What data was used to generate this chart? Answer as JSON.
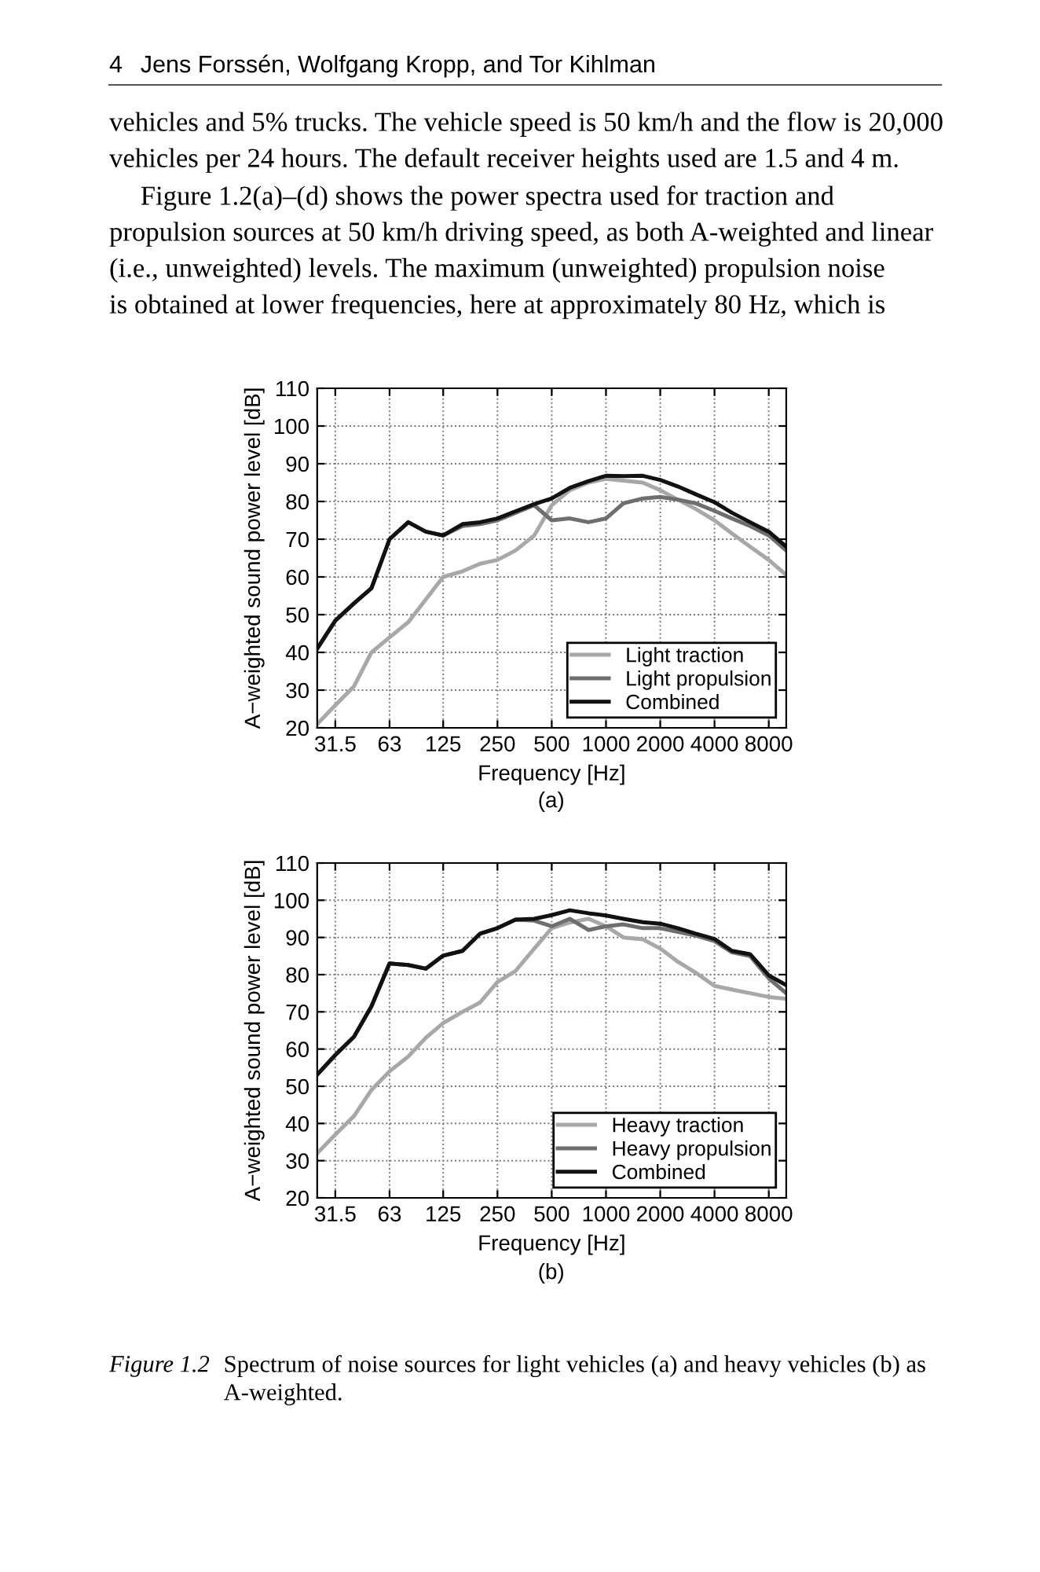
{
  "chart_data": [
    {
      "type": "line",
      "xlabel": "Frequency [Hz]",
      "ylabel": "A−weighted sound power level [dB]",
      "log": "x",
      "annotations": [
        "4",
        "Jens Forssén, Wolfgang Kropp, and Tor Kihlman",
        "vehicles and 5% trucks. The vehicle speed is 50 km/h and the flow is 20,000",
        "vehicles per 24 hours. The default receiver heights used are 1.5 and 4 m.",
        "Figure 1.2(a)–(d) shows the power spectra used for traction and",
        "propulsion sources at 50 km/h driving speed, as both A-weighted and linear",
        "(i.e., unweighted) levels. The maximum (unweighted) propulsion noise",
        "is obtained at lower frequencies, here at approximately 80 Hz, which is",
        "(a)"
      ],
      "x": [
        25,
        31.5,
        40,
        50,
        63,
        80,
        100,
        125,
        160,
        200,
        250,
        315,
        400,
        500,
        630,
        800,
        1000,
        1250,
        1600,
        2000,
        2500,
        3150,
        4000,
        5000,
        6300,
        8000,
        10000
      ],
      "xlim": [
        25,
        10000
      ],
      "xticks": [
        31.5,
        63,
        125,
        250,
        500,
        1000,
        2000,
        4000,
        8000
      ],
      "ylim": [
        20,
        110
      ],
      "yticks": [
        20,
        30,
        40,
        50,
        60,
        70,
        80,
        90,
        100,
        110
      ],
      "grid": true,
      "legend": "bottom right",
      "line_style": "solid",
      "series": [
        {
          "name": "Light traction",
          "color": "#a8a8a8",
          "values": [
            21,
            26,
            31,
            40,
            44,
            48,
            54,
            60,
            61.5,
            63.5,
            64.5,
            67,
            71,
            79,
            83,
            85,
            86,
            85.5,
            85,
            83,
            80.5,
            78,
            75,
            71.5,
            68,
            64.5,
            60.5
          ]
        },
        {
          "name": "Light propulsion",
          "color": "#6e6e6e",
          "values": [
            41,
            48.4,
            53,
            57,
            70,
            74.5,
            72,
            71,
            73.5,
            74,
            75,
            77,
            79,
            75,
            75.5,
            74.5,
            75.5,
            79.5,
            80.8,
            81.2,
            80.5,
            79.5,
            77.5,
            75.5,
            73.5,
            71,
            67
          ]
        },
        {
          "name": "Combined",
          "color": "#111111",
          "values": [
            41,
            48.4,
            53,
            57,
            70,
            74.5,
            72,
            71,
            74,
            74.5,
            75.5,
            77.4,
            79.3,
            80.8,
            83.6,
            85.4,
            86.8,
            86.7,
            86.8,
            85.7,
            84,
            81.9,
            79.8,
            77,
            74.5,
            72,
            68
          ]
        }
      ]
    },
    {
      "type": "line",
      "xlabel": "Frequency [Hz]",
      "ylabel": "A−weighted sound power level [dB]",
      "log": "x",
      "annotations": [
        "(b)",
        "Figure 1.2",
        "Spectrum of noise sources for light vehicles (a) and heavy vehicles (b) as",
        "A-weighted."
      ],
      "x": [
        25,
        31.5,
        40,
        50,
        63,
        80,
        100,
        125,
        160,
        200,
        250,
        315,
        400,
        500,
        630,
        800,
        1000,
        1250,
        1600,
        2000,
        2500,
        3150,
        4000,
        5000,
        6300,
        8000,
        10000
      ],
      "xlim": [
        25,
        10000
      ],
      "xticks": [
        31.5,
        63,
        125,
        250,
        500,
        1000,
        2000,
        4000,
        8000
      ],
      "ylim": [
        20,
        110
      ],
      "yticks": [
        20,
        30,
        40,
        50,
        60,
        70,
        80,
        90,
        100,
        110
      ],
      "grid": true,
      "legend": "bottom right",
      "line_style": "solid",
      "series": [
        {
          "name": "Heavy traction",
          "color": "#a8a8a8",
          "values": [
            32,
            37,
            42,
            49,
            54,
            58,
            63,
            67,
            70,
            72.5,
            78,
            81,
            87,
            92.5,
            94,
            95,
            93,
            90,
            89.5,
            87,
            83.5,
            80.5,
            77,
            76,
            75,
            74,
            73.5
          ]
        },
        {
          "name": "Heavy propulsion",
          "color": "#6e6e6e",
          "values": [
            53.1,
            58.4,
            63.3,
            71.5,
            83,
            82.6,
            81.6,
            85.1,
            86.4,
            91,
            92.5,
            94.8,
            94.5,
            93,
            95,
            92,
            93,
            93.5,
            92.5,
            92.5,
            91.5,
            90.5,
            89,
            86,
            85,
            79,
            75
          ]
        },
        {
          "name": "Combined",
          "color": "#111111",
          "values": [
            53.1,
            58.4,
            63.3,
            71.5,
            83,
            82.6,
            81.6,
            85.1,
            86.4,
            91,
            92.5,
            94.8,
            95,
            96,
            97.3,
            96.5,
            95.9,
            95,
            94.1,
            93.7,
            92.5,
            91,
            89.6,
            86.4,
            85.5,
            79.8,
            77.2
          ]
        }
      ]
    }
  ]
}
